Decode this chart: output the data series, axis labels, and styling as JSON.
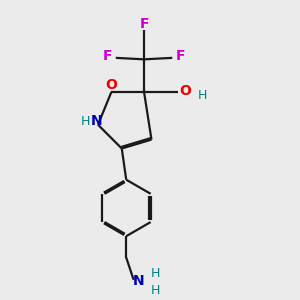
{
  "bg_color": "#ebebeb",
  "bond_color": "#1a1a1a",
  "O_color": "#ee0000",
  "N_color": "#0000bb",
  "F_color": "#cc00cc",
  "H_color": "#008080",
  "line_width": 1.6,
  "dbo": 0.055,
  "xlim": [
    2.8,
    7.8
  ],
  "ylim": [
    0.5,
    10.5
  ]
}
